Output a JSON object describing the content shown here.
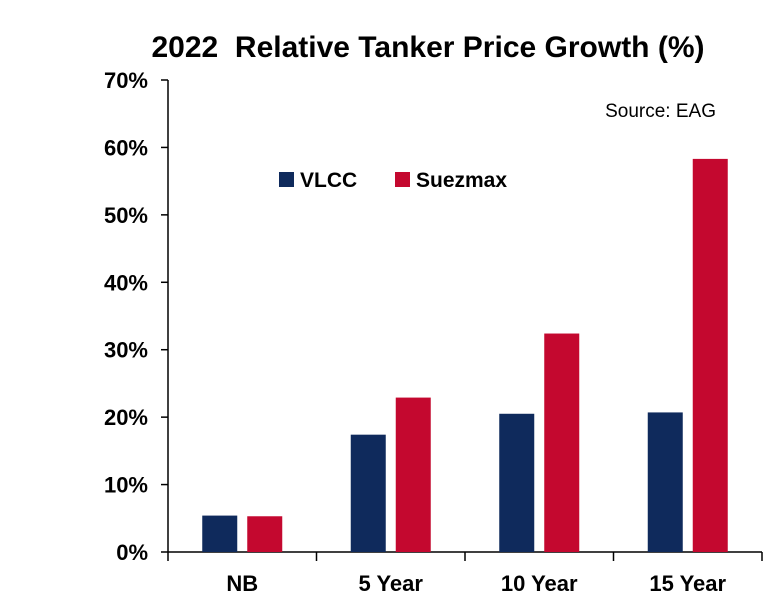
{
  "chart_data": {
    "type": "bar",
    "title": "2022  Relative Tanker Price Growth (%)",
    "annotation": "Source: EAG",
    "categories": [
      "NB",
      "5 Year",
      "10 Year",
      "15 Year"
    ],
    "series": [
      {
        "name": "VLCC",
        "color": "#0f2a5c",
        "values": [
          5.4,
          17.4,
          20.5,
          20.7
        ]
      },
      {
        "name": "Suezmax",
        "color": "#c4082f",
        "values": [
          5.3,
          22.9,
          32.4,
          58.3
        ]
      }
    ],
    "ylim": [
      0,
      70
    ],
    "yticks": [
      0,
      10,
      20,
      30,
      40,
      50,
      60,
      70
    ],
    "ytick_labels": [
      "0%",
      "10%",
      "20%",
      "30%",
      "40%",
      "50%",
      "60%",
      "70%"
    ],
    "xlabel": "",
    "ylabel": "",
    "grid": false,
    "legend_position": "top-center"
  }
}
